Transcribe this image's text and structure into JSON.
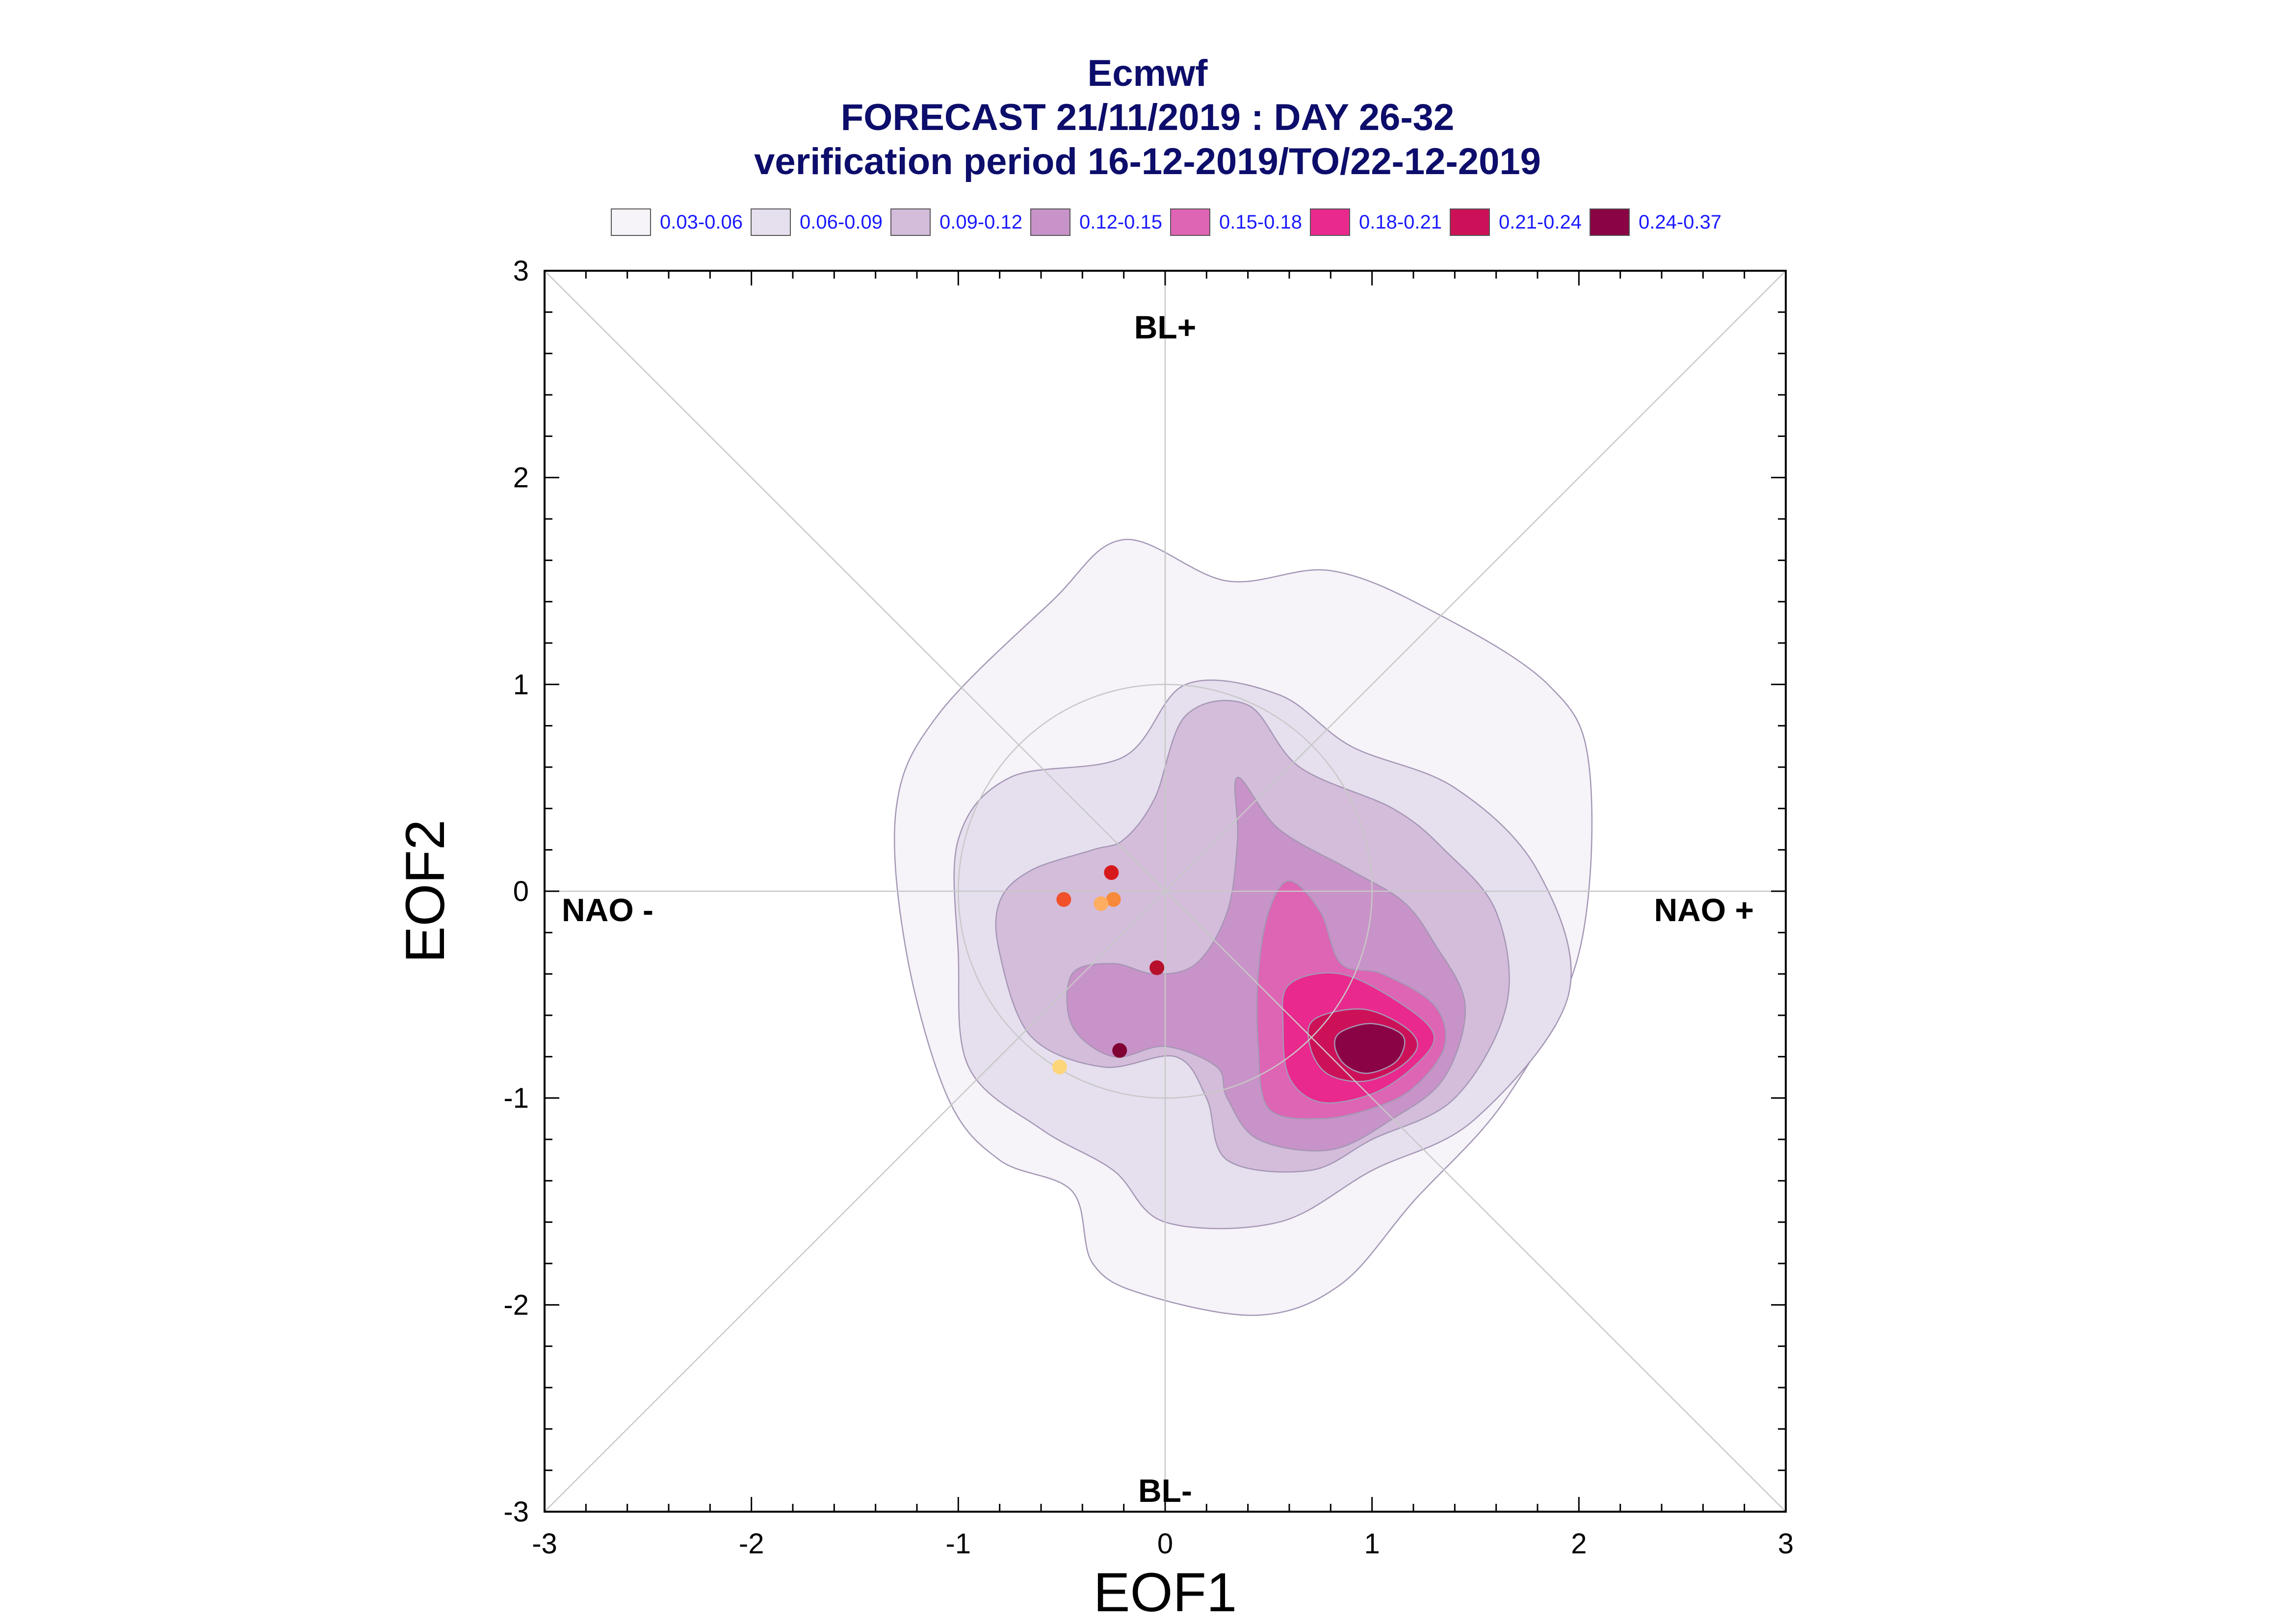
{
  "title": {
    "line1": "Ecmwf",
    "line2": "FORECAST 21/11/2019 : DAY 26-32",
    "line3": "verification period 16-12-2019/TO/22-12-2019"
  },
  "chart_data": {
    "type": "scatter",
    "title": "Ecmwf",
    "subtitle": "FORECAST 21/11/2019 : DAY 26-32 / verification period 16-12-2019/TO/22-12-2019",
    "xlabel": "EOF1",
    "ylabel": "EOF2",
    "xlim": [
      -3,
      3
    ],
    "ylim": [
      -3,
      3
    ],
    "xticks": [
      "-3",
      "-2",
      "-1",
      "0",
      "1",
      "2",
      "3"
    ],
    "yticks": [
      "3",
      "2",
      "1",
      "0",
      "-1",
      "-2",
      "-3"
    ],
    "grid": false,
    "reference_circle_radius": 1,
    "regime_labels": {
      "top": "BL+",
      "bottom": "BL-",
      "left": "NAO -",
      "right": "NAO +"
    },
    "density_levels": [
      {
        "label": "0.03-0.06",
        "color": "#f6f3f9"
      },
      {
        "label": "0.06-0.09",
        "color": "#e6dfee"
      },
      {
        "label": "0.09-0.12",
        "color": "#d4bcdb"
      },
      {
        "label": "0.12-0.15",
        "color": "#c893c8"
      },
      {
        "label": "0.15-0.18",
        "color": "#de64b4"
      },
      {
        "label": "0.18-0.21",
        "color": "#e9298e"
      },
      {
        "label": "0.21-0.24",
        "color": "#cd1159"
      },
      {
        "label": "0.24-0.37",
        "color": "#8a0345"
      }
    ],
    "contours": [
      {
        "level": 0,
        "points": [
          [
            -0.55,
            1.4
          ],
          [
            -0.2,
            1.7
          ],
          [
            0.3,
            1.5
          ],
          [
            0.8,
            1.55
          ],
          [
            1.3,
            1.35
          ],
          [
            1.85,
            1.0
          ],
          [
            2.05,
            0.6
          ],
          [
            2.0,
            -0.3
          ],
          [
            1.65,
            -1.0
          ],
          [
            1.2,
            -1.5
          ],
          [
            0.85,
            -1.9
          ],
          [
            0.45,
            -2.05
          ],
          [
            -0.1,
            -1.95
          ],
          [
            -0.35,
            -1.8
          ],
          [
            -0.45,
            -1.45
          ],
          [
            -0.8,
            -1.3
          ],
          [
            -1.05,
            -1.0
          ],
          [
            -1.25,
            -0.3
          ],
          [
            -1.3,
            0.4
          ],
          [
            -1.1,
            0.85
          ]
        ]
      },
      {
        "level": 1,
        "points": [
          [
            -0.75,
            0.55
          ],
          [
            -0.2,
            0.65
          ],
          [
            0.1,
            1.0
          ],
          [
            0.55,
            0.95
          ],
          [
            0.9,
            0.7
          ],
          [
            1.4,
            0.5
          ],
          [
            1.8,
            0.1
          ],
          [
            1.95,
            -0.5
          ],
          [
            1.5,
            -1.1
          ],
          [
            1.0,
            -1.35
          ],
          [
            0.55,
            -1.6
          ],
          [
            0.0,
            -1.6
          ],
          [
            -0.25,
            -1.35
          ],
          [
            -0.6,
            -1.15
          ],
          [
            -0.95,
            -0.85
          ],
          [
            -1.0,
            -0.3
          ],
          [
            -1.0,
            0.25
          ]
        ]
      },
      {
        "level": 2,
        "points": [
          [
            -0.65,
            0.1
          ],
          [
            -0.35,
            0.2
          ],
          [
            -0.2,
            0.25
          ],
          [
            -0.05,
            0.45
          ],
          [
            0.1,
            0.85
          ],
          [
            0.4,
            0.9
          ],
          [
            0.65,
            0.6
          ],
          [
            1.1,
            0.4
          ],
          [
            1.35,
            0.2
          ],
          [
            1.6,
            -0.1
          ],
          [
            1.65,
            -0.55
          ],
          [
            1.4,
            -1.0
          ],
          [
            1.0,
            -1.2
          ],
          [
            0.7,
            -1.35
          ],
          [
            0.3,
            -1.3
          ],
          [
            0.2,
            -1.0
          ],
          [
            0.05,
            -0.8
          ],
          [
            -0.3,
            -0.85
          ],
          [
            -0.65,
            -0.7
          ],
          [
            -0.8,
            -0.3
          ],
          [
            -0.8,
            -0.05
          ]
        ]
      },
      {
        "level": 3,
        "points": [
          [
            0.35,
            0.55
          ],
          [
            0.55,
            0.3
          ],
          [
            0.9,
            0.1
          ],
          [
            1.15,
            -0.05
          ],
          [
            1.3,
            -0.25
          ],
          [
            1.45,
            -0.55
          ],
          [
            1.35,
            -0.9
          ],
          [
            1.1,
            -1.1
          ],
          [
            0.8,
            -1.25
          ],
          [
            0.45,
            -1.2
          ],
          [
            0.3,
            -1.0
          ],
          [
            0.25,
            -0.85
          ],
          [
            0.0,
            -0.75
          ],
          [
            -0.25,
            -0.8
          ],
          [
            -0.45,
            -0.65
          ],
          [
            -0.45,
            -0.4
          ],
          [
            -0.25,
            -0.35
          ],
          [
            -0.05,
            -0.4
          ],
          [
            0.15,
            -0.35
          ],
          [
            0.3,
            -0.1
          ],
          [
            0.35,
            0.25
          ]
        ]
      },
      {
        "level": 4,
        "points": [
          [
            0.6,
            0.05
          ],
          [
            0.75,
            -0.1
          ],
          [
            0.85,
            -0.35
          ],
          [
            1.05,
            -0.4
          ],
          [
            1.3,
            -0.55
          ],
          [
            1.35,
            -0.75
          ],
          [
            1.2,
            -0.95
          ],
          [
            1.0,
            -1.05
          ],
          [
            0.75,
            -1.1
          ],
          [
            0.5,
            -1.05
          ],
          [
            0.45,
            -0.75
          ],
          [
            0.45,
            -0.4
          ],
          [
            0.5,
            -0.1
          ]
        ]
      },
      {
        "level": 5,
        "points": [
          [
            0.6,
            -0.45
          ],
          [
            0.85,
            -0.4
          ],
          [
            1.15,
            -0.55
          ],
          [
            1.3,
            -0.7
          ],
          [
            1.2,
            -0.85
          ],
          [
            1.0,
            -0.98
          ],
          [
            0.75,
            -1.02
          ],
          [
            0.6,
            -0.9
          ],
          [
            0.57,
            -0.65
          ]
        ]
      },
      {
        "level": 6,
        "points": [
          [
            0.72,
            -0.62
          ],
          [
            0.95,
            -0.57
          ],
          [
            1.15,
            -0.65
          ],
          [
            1.22,
            -0.75
          ],
          [
            1.12,
            -0.86
          ],
          [
            0.95,
            -0.92
          ],
          [
            0.78,
            -0.88
          ],
          [
            0.7,
            -0.75
          ]
        ]
      },
      {
        "level": 7,
        "points": [
          [
            0.85,
            -0.68
          ],
          [
            1.0,
            -0.64
          ],
          [
            1.15,
            -0.7
          ],
          [
            1.12,
            -0.82
          ],
          [
            0.98,
            -0.88
          ],
          [
            0.87,
            -0.84
          ],
          [
            0.82,
            -0.75
          ]
        ]
      }
    ],
    "points": [
      {
        "x": -0.26,
        "y": 0.09,
        "color": "#d7191c"
      },
      {
        "x": -0.49,
        "y": -0.04,
        "color": "#f0502a"
      },
      {
        "x": -0.25,
        "y": -0.04,
        "color": "#f7893a"
      },
      {
        "x": -0.31,
        "y": -0.06,
        "color": "#fdae61"
      },
      {
        "x": -0.04,
        "y": -0.37,
        "color": "#b7102d"
      },
      {
        "x": -0.22,
        "y": -0.77,
        "color": "#800033"
      },
      {
        "x": -0.51,
        "y": -0.85,
        "color": "#fed67a"
      }
    ]
  }
}
